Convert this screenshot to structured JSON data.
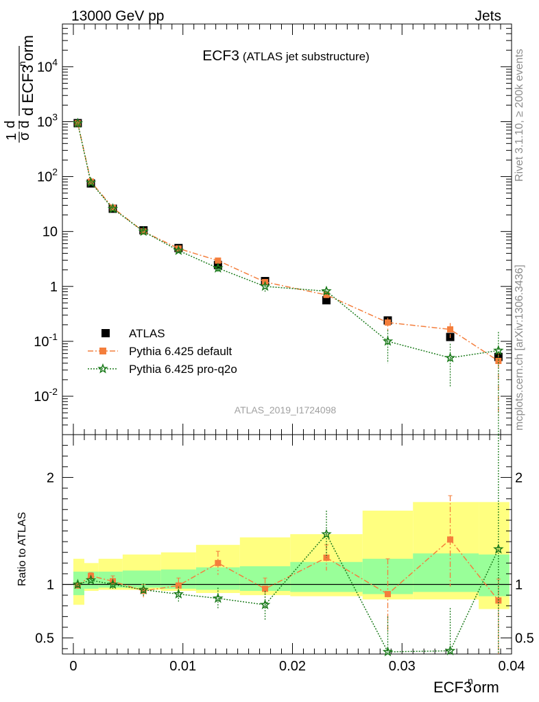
{
  "header": {
    "left": "13000 GeV pp",
    "right": "Jets"
  },
  "title": {
    "main": "ECF3",
    "sub": "(ATLAS jet substructure)"
  },
  "side_labels": {
    "rivet": "Rivet 3.1.10, ≥ 200k events",
    "mcplots": "mcplots.cern.ch [arXiv:1306.3436]"
  },
  "watermark": "ATLAS_2019_I1724098",
  "colors": {
    "atlas": "#000000",
    "default": "#f47e3c",
    "proq2o": "#1a7a1a",
    "band_outer": "#ffff80",
    "band_inner": "#99ff99"
  },
  "chart_data": [
    {
      "type": "scatter",
      "log_y": true,
      "ylim": [
        0.002,
        60000
      ],
      "xlim": [
        -0.001,
        0.04
      ],
      "ylabel": "1/σ dσ/d ECF3norm",
      "y_ticks": [
        "10^-2",
        "10^-1",
        "1",
        "10",
        "10^2",
        "10^3",
        "10^4"
      ],
      "legend_position": "bottom-left",
      "x": [
        0.0004,
        0.0016,
        0.0036,
        0.0064,
        0.0096,
        0.0132,
        0.0175,
        0.0231,
        0.0287,
        0.0344,
        0.0388
      ],
      "series": [
        {
          "name": "ATLAS",
          "marker": "square",
          "values": [
            940,
            75,
            26,
            10.5,
            5.0,
            2.45,
            1.25,
            0.56,
            0.24,
            0.12,
            0.052
          ],
          "err_up": [
            0,
            0,
            0,
            0,
            0,
            0,
            0,
            0,
            0,
            0,
            0
          ],
          "err_dn": [
            0,
            0,
            0,
            0,
            0,
            0,
            0,
            0,
            0,
            0,
            0
          ]
        },
        {
          "name": "Pythia 6.425 default",
          "marker": "filled-square",
          "line": "dashdot",
          "values": [
            935,
            81,
            27,
            10.0,
            4.9,
            2.95,
            1.2,
            0.7,
            0.22,
            0.165,
            0.044
          ],
          "err_up": [
            30,
            4,
            1.5,
            0.6,
            0.35,
            0.35,
            0.15,
            0.07,
            0.05,
            0.05,
            0.02
          ],
          "err_dn": [
            30,
            4,
            1.5,
            0.6,
            0.35,
            0.35,
            0.15,
            0.07,
            0.06,
            0.05,
            0.04
          ]
        },
        {
          "name": "Pythia 6.425 pro-q2o",
          "marker": "star",
          "line": "dotted",
          "values": [
            935,
            78,
            26,
            10.0,
            4.5,
            2.15,
            1.0,
            0.82,
            0.1,
            0.05,
            0.068
          ],
          "err_up": [
            35,
            4,
            1.5,
            0.7,
            0.4,
            0.3,
            0.2,
            0.12,
            0.06,
            0.04,
            0.08
          ],
          "err_dn": [
            35,
            4,
            1.5,
            0.7,
            0.4,
            0.3,
            0.2,
            0.12,
            0.06,
            0.035,
            0.067
          ]
        }
      ]
    },
    {
      "type": "scatter",
      "ylabel": "Ratio to ATLAS",
      "xlabel": "ECF3norm",
      "ylim": [
        0.35,
        2.4
      ],
      "xlim": [
        -0.001,
        0.04
      ],
      "x_ticks": [
        "0",
        "0.01",
        "0.02",
        "0.03",
        "0.04"
      ],
      "y_ticks": [
        "0.5",
        "1",
        "2"
      ],
      "bins": [
        {
          "lo": 0.0,
          "hi": 0.001,
          "band_outer": [
            0.81,
            1.24
          ],
          "band_inner": [
            0.9,
            1.12
          ]
        },
        {
          "lo": 0.001,
          "hi": 0.0023,
          "band_outer": [
            0.94,
            1.2
          ],
          "band_inner": [
            0.96,
            1.12
          ]
        },
        {
          "lo": 0.0023,
          "hi": 0.0045,
          "band_outer": [
            0.95,
            1.24
          ],
          "band_inner": [
            0.97,
            1.12
          ]
        },
        {
          "lo": 0.0045,
          "hi": 0.008,
          "band_outer": [
            0.95,
            1.28
          ],
          "band_inner": [
            0.97,
            1.13
          ]
        },
        {
          "lo": 0.008,
          "hi": 0.0112,
          "band_outer": [
            0.94,
            1.3
          ],
          "band_inner": [
            0.96,
            1.14
          ]
        },
        {
          "lo": 0.0112,
          "hi": 0.0152,
          "band_outer": [
            0.92,
            1.37
          ],
          "band_inner": [
            0.95,
            1.16
          ]
        },
        {
          "lo": 0.0152,
          "hi": 0.0198,
          "band_outer": [
            0.9,
            1.44
          ],
          "band_inner": [
            0.94,
            1.17
          ]
        },
        {
          "lo": 0.0198,
          "hi": 0.0264,
          "band_outer": [
            0.89,
            1.47
          ],
          "band_inner": [
            0.93,
            1.21
          ]
        },
        {
          "lo": 0.0264,
          "hi": 0.031,
          "band_outer": [
            0.86,
            1.69
          ],
          "band_inner": [
            0.91,
            1.24
          ]
        },
        {
          "lo": 0.031,
          "hi": 0.037,
          "band_outer": [
            0.86,
            1.77
          ],
          "band_inner": [
            0.93,
            1.29
          ]
        },
        {
          "lo": 0.037,
          "hi": 0.0398,
          "band_outer": [
            0.77,
            1.77
          ],
          "band_inner": [
            0.89,
            1.28
          ]
        }
      ],
      "x": [
        0.0004,
        0.0016,
        0.0036,
        0.0064,
        0.0096,
        0.0132,
        0.0175,
        0.0231,
        0.0287,
        0.0344,
        0.0388
      ],
      "series": [
        {
          "name": "Pythia 6.425 default",
          "values": [
            0.99,
            1.08,
            1.03,
            0.94,
            0.99,
            1.2,
            0.96,
            1.25,
            0.91,
            1.42,
            0.85
          ],
          "err_up": [
            0.02,
            0.03,
            0.05,
            0.06,
            0.07,
            0.11,
            0.1,
            0.12,
            0.33,
            0.41,
            0.2
          ],
          "err_dn": [
            0.02,
            0.03,
            0.05,
            0.06,
            0.07,
            0.11,
            0.1,
            0.12,
            0.36,
            0.44,
            0.5
          ]
        },
        {
          "name": "Pythia 6.425 pro-q2o",
          "values": [
            1.0,
            1.04,
            1.0,
            0.95,
            0.91,
            0.87,
            0.81,
            1.47,
            0.37,
            0.38,
            1.33
          ],
          "err_up": [
            0.03,
            0.04,
            0.05,
            0.06,
            0.07,
            0.1,
            0.13,
            0.22,
            0.33,
            0.4,
            1.2
          ],
          "err_dn": [
            0.03,
            0.04,
            0.05,
            0.06,
            0.07,
            0.1,
            0.14,
            0.22,
            0.05,
            0.05,
            1.0
          ]
        }
      ]
    }
  ]
}
